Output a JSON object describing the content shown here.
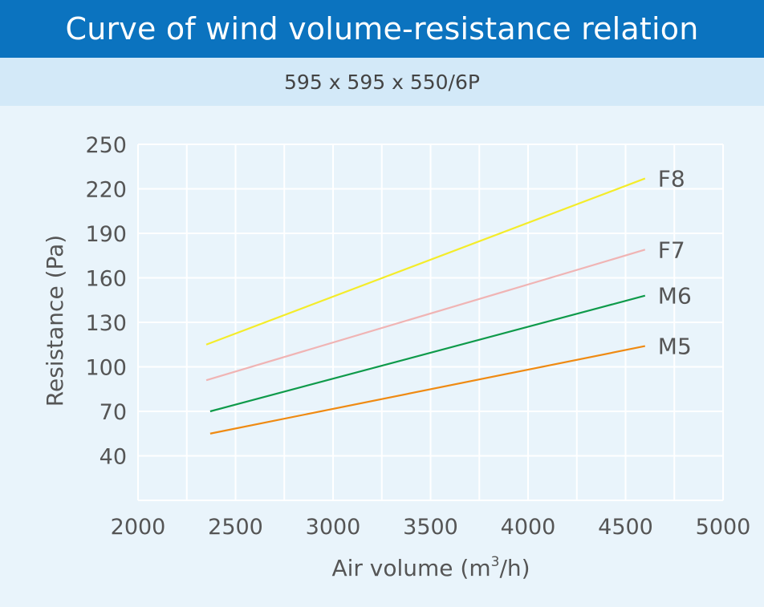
{
  "header": {
    "title": "Curve of wind volume-resistance relation",
    "subtitle": "595 x 595 x 550/6P"
  },
  "chart_data": {
    "type": "line",
    "xlabel_prefix": "Air volume (m",
    "xlabel_sup": "3",
    "xlabel_suffix": "/h)",
    "ylabel": "Resistance (Pa)",
    "xlim": [
      2000,
      5000
    ],
    "ylim": [
      10,
      250
    ],
    "x_ticks": [
      2000,
      2500,
      3000,
      3500,
      4000,
      4500,
      5000
    ],
    "y_ticks": [
      40,
      70,
      100,
      130,
      160,
      190,
      220,
      250
    ],
    "grid": true,
    "legend": "inline-right",
    "series": [
      {
        "name": "F8",
        "color": "#f4ec2a",
        "x": [
          2350,
          4600
        ],
        "y": [
          115,
          227
        ]
      },
      {
        "name": "F7",
        "color": "#f0b4b4",
        "x": [
          2350,
          4600
        ],
        "y": [
          91,
          179
        ]
      },
      {
        "name": "M6",
        "color": "#0e9a4a",
        "x": [
          2370,
          4600
        ],
        "y": [
          70,
          148
        ]
      },
      {
        "name": "M5",
        "color": "#ef8a12",
        "x": [
          2370,
          4600
        ],
        "y": [
          55,
          114
        ]
      }
    ]
  }
}
